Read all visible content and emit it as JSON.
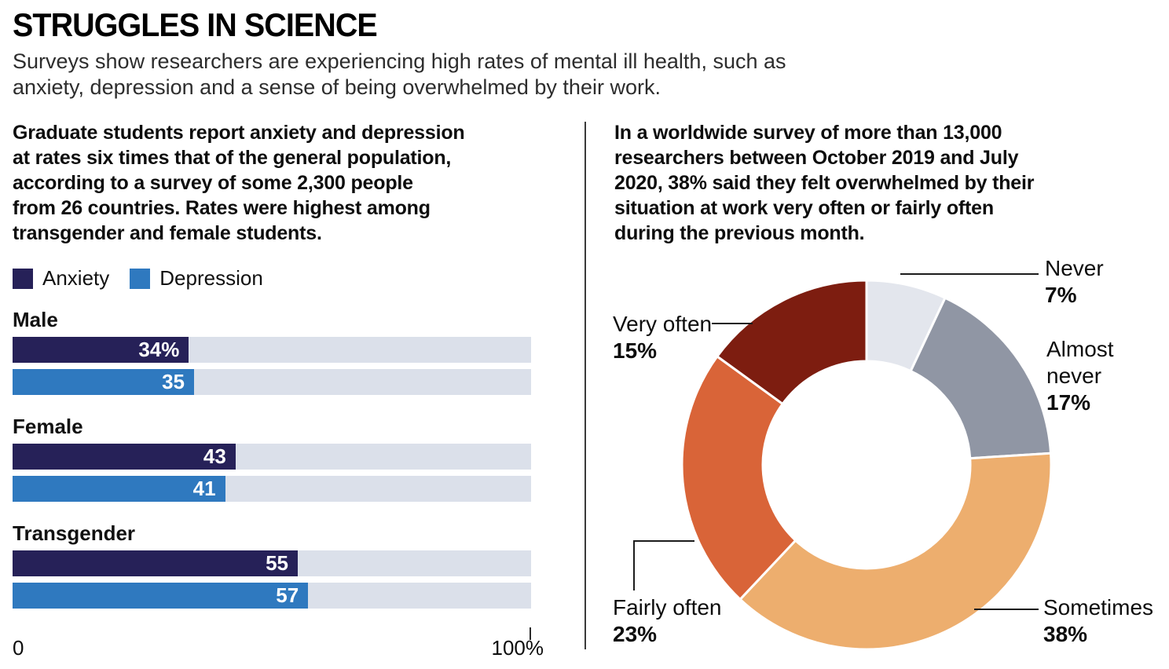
{
  "header": {
    "title": "STRUGGLES IN SCIENCE",
    "subtitle_lines": [
      "Surveys show researchers are experiencing high rates of mental ill health, such as",
      "anxiety, depression and a sense of being overwhelmed by their work."
    ]
  },
  "left_panel": {
    "intro_lines": [
      "Graduate students report anxiety and depression",
      "at rates six times that of the general population,",
      "according to a survey of some 2,300 people",
      "from 26 countries. Rates were highest among",
      "transgender and female students."
    ]
  },
  "right_panel": {
    "intro_lines": [
      "In a worldwide survey of more than 13,000",
      "researchers between October 2019 and July",
      "2020, 38% said they felt overwhelmed by their",
      "situation at work very often or fairly often",
      "during the previous month."
    ],
    "callouts": {
      "never": {
        "name": "Never",
        "pct": "7%"
      },
      "almost_never": {
        "name": "Almost never",
        "pct": "17%"
      },
      "sometimes": {
        "name": "Sometimes",
        "pct": "38%"
      },
      "fairly_often": {
        "name": "Fairly often",
        "pct": "23%"
      },
      "very_often": {
        "name": "Very often",
        "pct": "15%"
      }
    }
  },
  "colors": {
    "divider": "#3a3a3a",
    "bar_track": "#dbe0ea"
  },
  "chart_data": [
    {
      "type": "bar",
      "categories": [
        "Male",
        "Female",
        "Transgender"
      ],
      "series": [
        {
          "name": "Anxiety",
          "color": "#262158",
          "values": [
            34,
            43,
            55
          ]
        },
        {
          "name": "Depression",
          "color": "#2f79bf",
          "values": [
            35,
            41,
            57
          ]
        }
      ],
      "value_labels": [
        [
          "34%",
          "35"
        ],
        [
          "43",
          "41"
        ],
        [
          "55",
          "57"
        ]
      ],
      "xlim": [
        0,
        100
      ],
      "x_ticks": [
        "0",
        "100%"
      ],
      "grid": false,
      "legend_position": "top"
    },
    {
      "type": "pie",
      "subtype": "donut",
      "labels": [
        "Never",
        "Almost never",
        "Sometimes",
        "Fairly often",
        "Very often"
      ],
      "values": [
        7,
        17,
        38,
        23,
        15
      ],
      "colors": [
        "#e3e6ed",
        "#9096a4",
        "#edae6e",
        "#d96438",
        "#7d1d10"
      ],
      "start_angle_deg": 0,
      "direction": "clockwise",
      "inner_radius_ratio": 0.56
    }
  ]
}
